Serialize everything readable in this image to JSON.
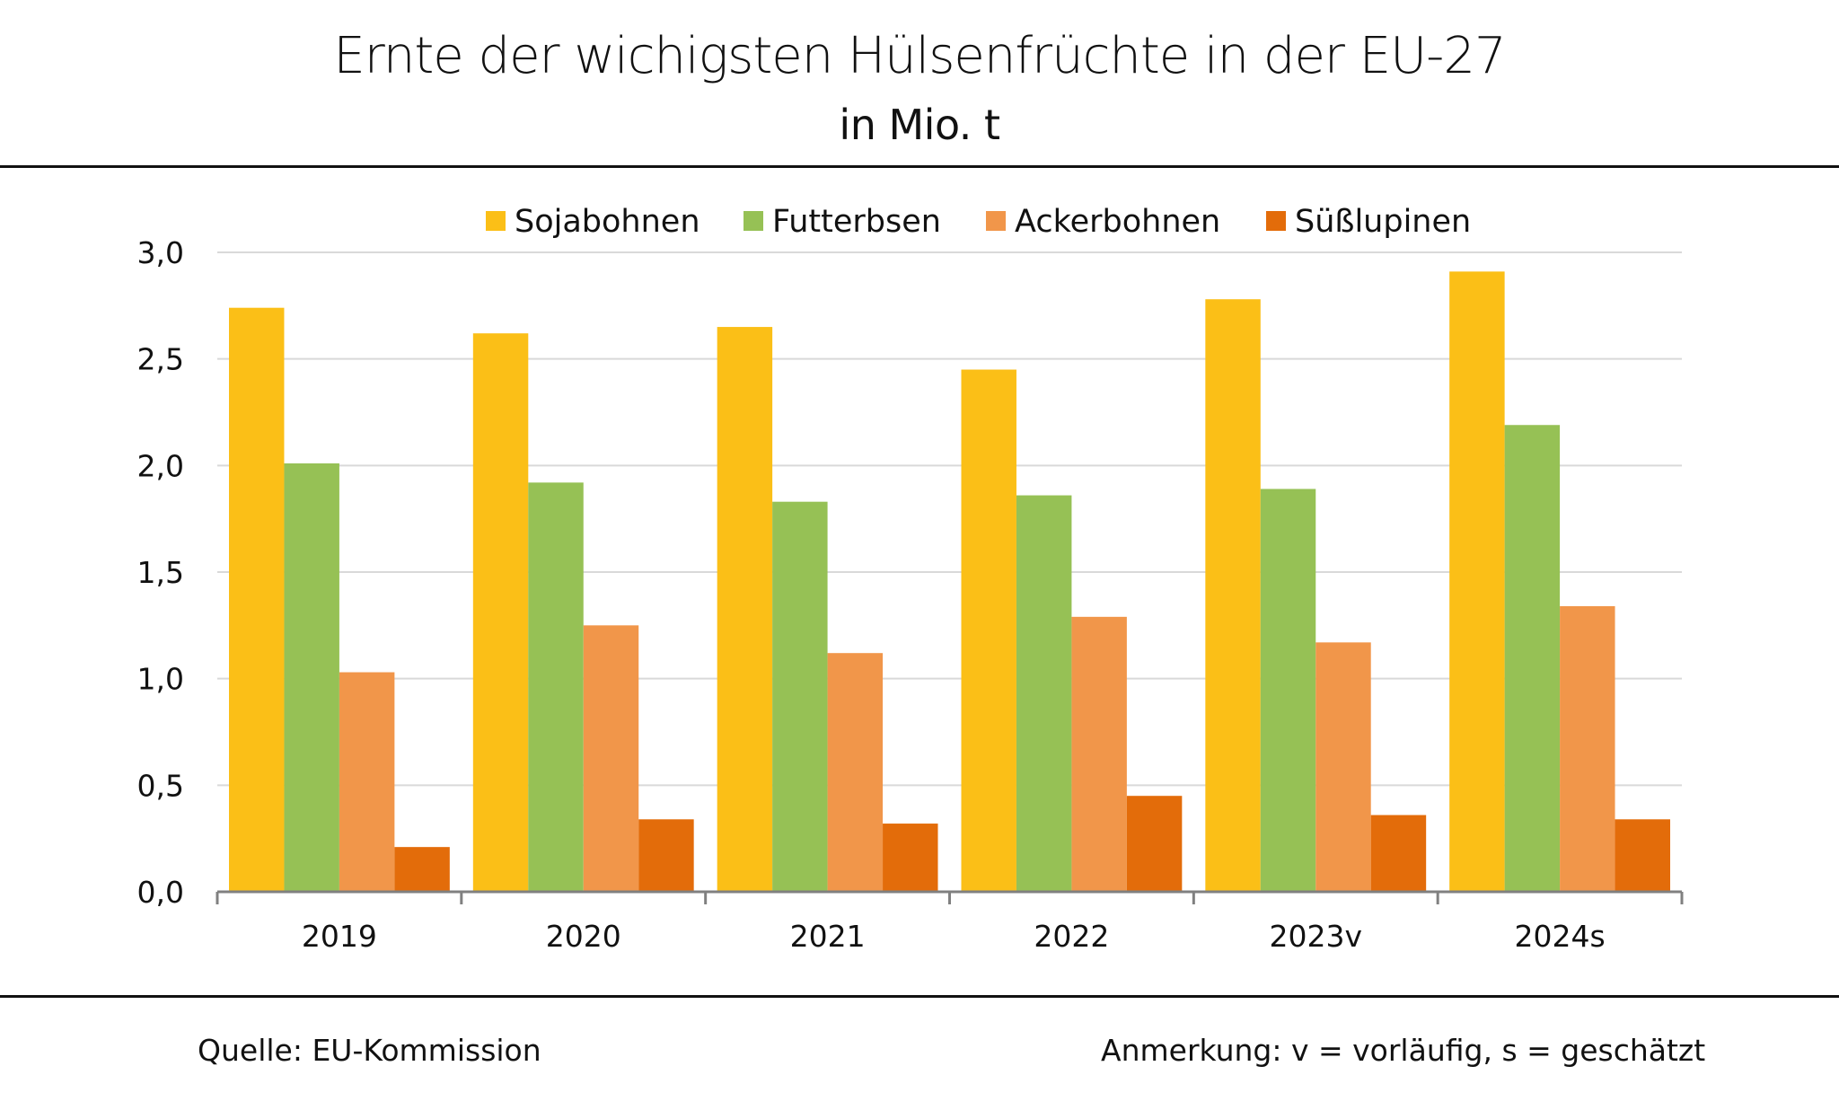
{
  "header": {
    "title": "Ernte der wichigsten Hülsenfrüchte in der EU-27",
    "subtitle": "in Mio. t"
  },
  "footer": {
    "source": "Quelle: EU-Kommission",
    "note": "Anmerkung: v = vorläufig, s = geschätzt"
  },
  "chart_data": {
    "type": "bar",
    "title": "Ernte der wichigsten Hülsenfrüchte in der EU-27",
    "subtitle": "in Mio. t",
    "xlabel": "",
    "ylabel": "",
    "categories": [
      "2019",
      "2020",
      "2021",
      "2022",
      "2023v",
      "2024s"
    ],
    "ylim": [
      0,
      3.0
    ],
    "yticks": [
      0.0,
      0.5,
      1.0,
      1.5,
      2.0,
      2.5,
      3.0
    ],
    "ytick_labels": [
      "0,0",
      "0,5",
      "1,0",
      "1,5",
      "2,0",
      "2,5",
      "3,0"
    ],
    "grid": true,
    "legend_position": "top-center",
    "series": [
      {
        "name": "Sojabohnen",
        "color": "#FBBF17",
        "values": [
          2.74,
          2.62,
          2.65,
          2.45,
          2.78,
          2.91
        ]
      },
      {
        "name": "Futterbsen",
        "color": "#96C155",
        "values": [
          2.01,
          1.92,
          1.83,
          1.86,
          1.89,
          2.19
        ]
      },
      {
        "name": "Ackerbohnen",
        "color": "#F1964A",
        "values": [
          1.03,
          1.25,
          1.12,
          1.29,
          1.17,
          1.34
        ]
      },
      {
        "name": "Süßlupinen",
        "color": "#E36C0A",
        "values": [
          0.21,
          0.34,
          0.32,
          0.45,
          0.36,
          0.34
        ]
      }
    ]
  }
}
